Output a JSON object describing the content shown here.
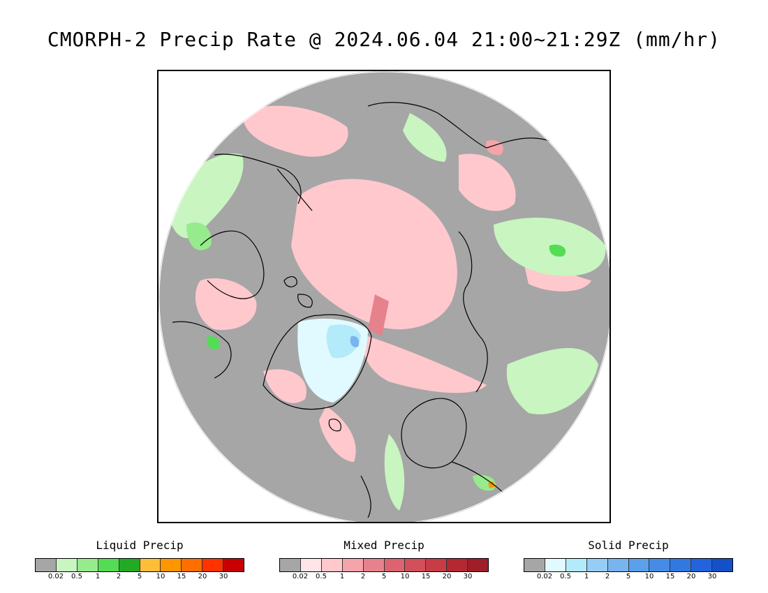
{
  "title": "CMORPH-2 Precip Rate @ 2024.06.04 21:00~21:29Z (mm/hr)",
  "map": {
    "projection": "north polar stereographic",
    "background_color": "#a6a6a6",
    "coastline_color": "#000000"
  },
  "legends": [
    {
      "title": "Liquid Precip",
      "colors": [
        "#a6a6a6",
        "#c8f5c0",
        "#96eb8c",
        "#55dc55",
        "#23aa23",
        "#ffbe37",
        "#ff9600",
        "#ff6e00",
        "#ff3200",
        "#c80000"
      ],
      "ticks": [
        "0.02",
        "0.5",
        "1",
        "2",
        "5",
        "10",
        "15",
        "20",
        "30"
      ]
    },
    {
      "title": "Mixed Precip",
      "colors": [
        "#a6a6a6",
        "#ffe4e8",
        "#ffc8cd",
        "#f5a5aa",
        "#e6828c",
        "#dc6470",
        "#d2505a",
        "#c83c46",
        "#b42832",
        "#a01e28"
      ],
      "ticks": [
        "0.02",
        "0.5",
        "1",
        "2",
        "5",
        "10",
        "15",
        "20",
        "30"
      ]
    },
    {
      "title": "Solid Precip",
      "colors": [
        "#a6a6a6",
        "#e1faff",
        "#b4ebfa",
        "#96cdf5",
        "#78b4f0",
        "#5aa0eb",
        "#468ce6",
        "#3278e1",
        "#2364dc",
        "#1450c8"
      ],
      "ticks": [
        "0.02",
        "0.5",
        "1",
        "2",
        "5",
        "10",
        "15",
        "20",
        "30"
      ]
    }
  ]
}
